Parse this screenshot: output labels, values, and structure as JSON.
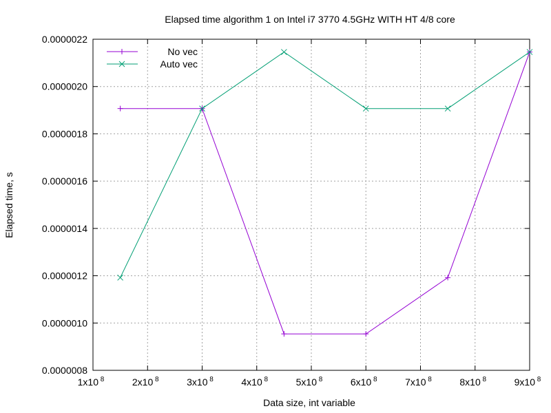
{
  "chart_data": {
    "type": "line",
    "title": "Elapsed time algorithm 1 on Intel i7 3770  4.5GHz WITH HT 4/8 core",
    "xlabel": "Data size, int variable",
    "ylabel": "Elapsed time, s",
    "xlim": [
      100000000,
      900000000
    ],
    "ylim": [
      8e-07,
      2.2e-06
    ],
    "xticks": [
      {
        "value": 100000000,
        "base": "1x10",
        "exp": "8"
      },
      {
        "value": 200000000,
        "base": "2x10",
        "exp": "8"
      },
      {
        "value": 300000000,
        "base": "3x10",
        "exp": "8"
      },
      {
        "value": 400000000,
        "base": "4x10",
        "exp": "8"
      },
      {
        "value": 500000000,
        "base": "5x10",
        "exp": "8"
      },
      {
        "value": 600000000,
        "base": "6x10",
        "exp": "8"
      },
      {
        "value": 700000000,
        "base": "7x10",
        "exp": "8"
      },
      {
        "value": 800000000,
        "base": "8x10",
        "exp": "8"
      },
      {
        "value": 900000000,
        "base": "9x10",
        "exp": "8"
      }
    ],
    "yticks": [
      {
        "value": 8e-07,
        "label": "0.0000008"
      },
      {
        "value": 1e-06,
        "label": "0.0000010"
      },
      {
        "value": 1.2e-06,
        "label": "0.0000012"
      },
      {
        "value": 1.4e-06,
        "label": "0.0000014"
      },
      {
        "value": 1.6e-06,
        "label": "0.0000016"
      },
      {
        "value": 1.8e-06,
        "label": "0.0000018"
      },
      {
        "value": 2e-06,
        "label": "0.0000020"
      },
      {
        "value": 2.2e-06,
        "label": "0.0000022"
      }
    ],
    "grid": true,
    "legend_position": "top-left",
    "x": [
      150000000,
      300000000,
      450000000,
      600000000,
      750000000,
      900000000
    ],
    "series": [
      {
        "name": "No vec",
        "color": "#9400d3",
        "marker": "plus",
        "values": [
          1.907e-06,
          1.907e-06,
          9.54e-07,
          9.54e-07,
          1.192e-06,
          2.146e-06
        ]
      },
      {
        "name": "Auto vec",
        "color": "#009e73",
        "marker": "cross",
        "values": [
          1.192e-06,
          1.907e-06,
          2.146e-06,
          1.907e-06,
          1.907e-06,
          2.146e-06
        ]
      }
    ]
  }
}
